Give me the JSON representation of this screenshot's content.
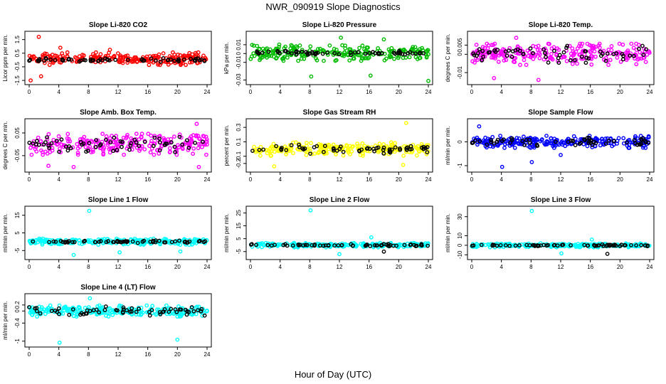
{
  "figure": {
    "title": "NWR_090919  Slope Diagnostics",
    "xlabel": "Hour of Day (UTC)"
  },
  "chart_data": [
    {
      "type": "scatter",
      "title": "Slope Li-820 CO2",
      "ylabel": "Licor ppm per min.",
      "xlim": [
        0,
        24
      ],
      "ylim": [
        -1.6,
        1.9
      ],
      "xticks": [
        0,
        4,
        8,
        12,
        16,
        20,
        24
      ],
      "yticks": [
        -1.5,
        -0.5,
        0.5,
        1.5
      ],
      "grid": false,
      "series": [
        {
          "color": "#ff0000",
          "center": 0.1,
          "spread": 0.4,
          "x": [
            1.3,
            1.6,
            0.2,
            4.2,
            10.9
          ],
          "y": [
            1.7,
            -1.2,
            -1.5,
            0.9,
            0.75
          ]
        },
        {
          "color": "#000000",
          "center": 0.0,
          "spread": 0.12,
          "x": [],
          "y": []
        }
      ]
    },
    {
      "type": "scatter",
      "title": "Slope Li-820 Pressure",
      "ylabel": "kPa per min.",
      "xlim": [
        0,
        24
      ],
      "ylim": [
        -0.032,
        0.022
      ],
      "xticks": [
        0,
        4,
        8,
        12,
        16,
        20,
        24
      ],
      "yticks": [
        -0.03,
        -0.01,
        0.0,
        0.01
      ],
      "grid": false,
      "series": [
        {
          "color": "#00bb00",
          "center": 0.001,
          "spread": 0.008,
          "x": [
            8.2,
            16.2,
            24.0,
            12.2,
            18.0
          ],
          "y": [
            -0.026,
            -0.025,
            -0.031,
            0.018,
            0.016
          ]
        },
        {
          "color": "#000000",
          "center": 0.0005,
          "spread": 0.002,
          "x": [],
          "y": []
        }
      ]
    },
    {
      "type": "scatter",
      "title": "Slope Li-820 Temp.",
      "ylabel": "degrees C per min.",
      "xlim": [
        0,
        24
      ],
      "ylim": [
        -0.015,
        0.011
      ],
      "xticks": [
        0,
        4,
        8,
        12,
        16,
        20,
        24
      ],
      "yticks": [
        -0.01,
        0.0,
        0.005
      ],
      "grid": false,
      "series": [
        {
          "color": "#ff00ff",
          "center": 0.0,
          "spread": 0.005,
          "x": [
            6.0,
            9.0,
            3.0
          ],
          "y": [
            0.009,
            -0.014,
            -0.013
          ]
        },
        {
          "color": "#000000",
          "center": 0.0,
          "spread": 0.004,
          "x": [],
          "y": []
        }
      ]
    },
    {
      "type": "scatter",
      "title": "Slope Amb. Box Temp.",
      "ylabel": "degrees C per min.",
      "xlim": [
        0,
        24
      ],
      "ylim": [
        -0.11,
        0.1
      ],
      "xticks": [
        0,
        4,
        8,
        12,
        16,
        20,
        24
      ],
      "yticks": [
        -0.05,
        0.05
      ],
      "grid": false,
      "series": [
        {
          "color": "#ff00ff",
          "center": 0.0,
          "spread": 0.04,
          "x": [
            2.6,
            6.0,
            22.9,
            22.6
          ],
          "y": [
            -0.095,
            -0.1,
            -0.1,
            0.09
          ]
        },
        {
          "color": "#000000",
          "center": 0.0,
          "spread": 0.03,
          "x": [],
          "y": []
        }
      ]
    },
    {
      "type": "scatter",
      "title": "Slope Gas Stream RH",
      "ylabel": "percent per min.",
      "xlim": [
        0,
        24
      ],
      "ylim": [
        -0.28,
        0.38
      ],
      "xticks": [
        0,
        4,
        8,
        12,
        16,
        20,
        24
      ],
      "yticks": [
        -0.2,
        -0.1,
        0.1,
        0.3
      ],
      "grid": false,
      "series": [
        {
          "color": "#ffff00",
          "center": 0.0,
          "spread": 0.08,
          "x": [
            21.0,
            3.2,
            20.6
          ],
          "y": [
            0.36,
            -0.24,
            -0.22
          ]
        },
        {
          "color": "#000000",
          "center": 0.0,
          "spread": 0.06,
          "x": [],
          "y": []
        }
      ]
    },
    {
      "type": "scatter",
      "title": "Slope Sample Flow",
      "ylabel": "ml/min per min.",
      "xlim": [
        0,
        24
      ],
      "ylim": [
        -1.15,
        0.85
      ],
      "xticks": [
        0,
        4,
        8,
        12,
        16,
        20,
        24
      ],
      "yticks": [
        -1.0,
        0.0
      ],
      "grid": false,
      "series": [
        {
          "color": "#0000ff",
          "center": 0.0,
          "spread": 0.22,
          "x": [
            4.1,
            8.1,
            12.0,
            1.0
          ],
          "y": [
            -1.05,
            -0.85,
            -0.55,
            0.65
          ]
        },
        {
          "color": "#000000",
          "center": 0.0,
          "spread": 0.15,
          "x": [],
          "y": []
        }
      ]
    },
    {
      "type": "scatter",
      "title": "Slope Line 1 Flow",
      "ylabel": "ml/min per min.",
      "xlim": [
        0,
        24
      ],
      "ylim": [
        -8.5,
        18.5
      ],
      "xticks": [
        0,
        4,
        8,
        12,
        16,
        20,
        24
      ],
      "yticks": [
        -5,
        5,
        15
      ],
      "grid": false,
      "series": [
        {
          "color": "#00ffff",
          "center": 0.0,
          "spread": 1.5,
          "x": [
            8.1,
            12.2,
            6.0,
            20.4
          ],
          "y": [
            17.5,
            -6.0,
            -7.5,
            -5.5
          ]
        },
        {
          "color": "#000000",
          "center": 0.0,
          "spread": 0.6,
          "x": [],
          "y": []
        }
      ]
    },
    {
      "type": "scatter",
      "title": "Slope Line 2 Flow",
      "ylabel": "ml/min per min.",
      "xlim": [
        0,
        24
      ],
      "ylim": [
        -9,
        28
      ],
      "xticks": [
        0,
        4,
        8,
        12,
        16,
        20,
        24
      ],
      "yticks": [
        -5,
        5,
        15,
        25
      ],
      "grid": false,
      "series": [
        {
          "color": "#00ffff",
          "center": 0.0,
          "spread": 1.5,
          "x": [
            8.1,
            12.0,
            16.3
          ],
          "y": [
            27.0,
            -7.0,
            6.0
          ]
        },
        {
          "color": "#000000",
          "center": 0.0,
          "spread": 0.7,
          "x": [
            18.0
          ],
          "y": [
            -5.0
          ]
        }
      ]
    },
    {
      "type": "scatter",
      "title": "Slope Line 3 Flow",
      "ylabel": "ml/min per min.",
      "xlim": [
        0,
        24
      ],
      "ylim": [
        -12,
        38
      ],
      "xticks": [
        0,
        4,
        8,
        12,
        16,
        20,
        24
      ],
      "yticks": [
        -10,
        0,
        10,
        30
      ],
      "grid": false,
      "series": [
        {
          "color": "#00ffff",
          "center": 0.0,
          "spread": 1.8,
          "x": [
            8.1,
            12.1,
            16.2
          ],
          "y": [
            36.0,
            -8.5,
            6.0
          ]
        },
        {
          "color": "#000000",
          "center": 0.0,
          "spread": 0.8,
          "x": [
            18.3
          ],
          "y": [
            -9.0
          ]
        }
      ]
    },
    {
      "type": "scatter",
      "title": "Slope Line 4 (LT) Flow",
      "ylabel": "ml/min per min.",
      "xlim": [
        0,
        24
      ],
      "ylim": [
        -1.1,
        0.48
      ],
      "xticks": [
        0,
        4,
        8,
        12,
        16,
        20,
        24
      ],
      "yticks": [
        -1.0,
        -0.4,
        0.0,
        0.2
      ],
      "grid": false,
      "series": [
        {
          "color": "#00ffff",
          "center": 0.0,
          "spread": 0.16,
          "x": [
            4.1,
            20.0,
            8.2
          ],
          "y": [
            -1.05,
            -0.95,
            0.42
          ]
        },
        {
          "color": "#000000",
          "center": 0.0,
          "spread": 0.13,
          "x": [],
          "y": []
        }
      ]
    }
  ]
}
